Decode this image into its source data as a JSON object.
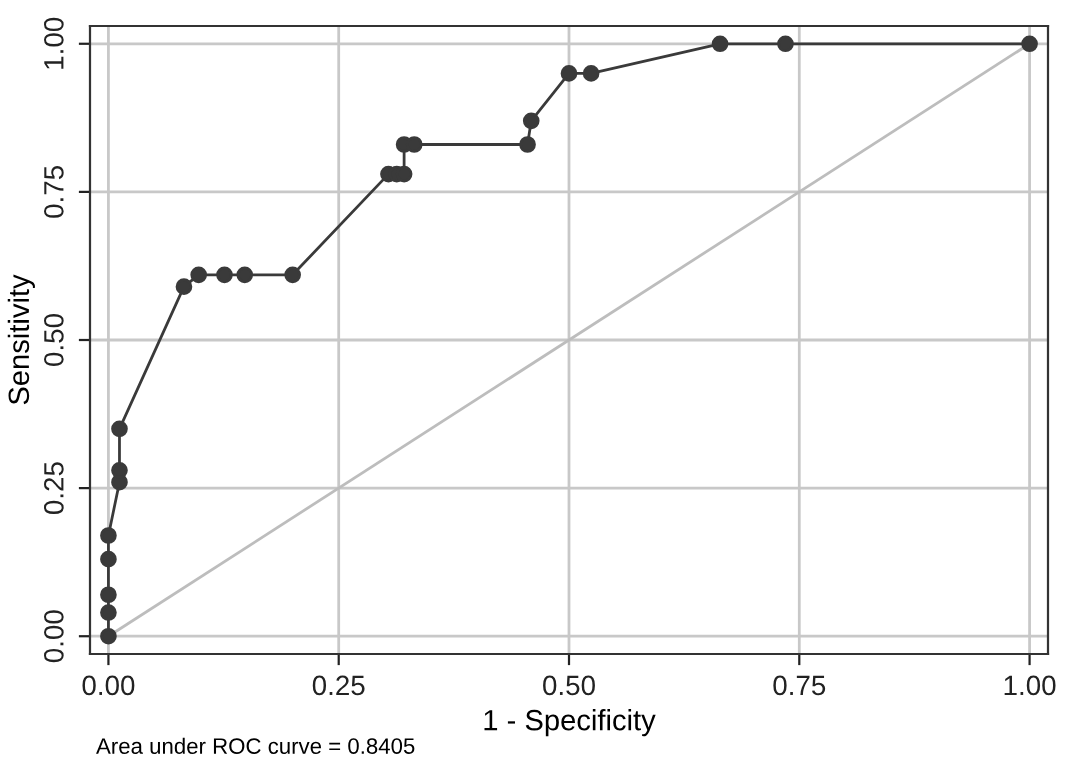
{
  "chart_data": {
    "type": "line",
    "xlabel": "1 - Specificity",
    "ylabel": "Sensitivity",
    "annotations": [
      "Area under ROC curve = 0.8405"
    ],
    "series": [
      {
        "color": "#3a3a3a",
        "marker": "circle",
        "x": [
          0,
          0,
          0,
          0,
          0,
          0.012,
          0.012,
          0.012,
          0.082,
          0.098,
          0.126,
          0.148,
          0.2,
          0.304,
          0.313,
          0.321,
          0.321,
          0.332,
          0.455,
          0.459,
          0.5,
          0.524,
          0.664,
          0.735,
          1.0
        ],
        "values": [
          0,
          0.04,
          0.07,
          0.13,
          0.17,
          0.26,
          0.28,
          0.35,
          0.59,
          0.61,
          0.61,
          0.61,
          0.61,
          0.78,
          0.78,
          0.78,
          0.83,
          0.83,
          0.83,
          0.87,
          0.95,
          0.95,
          1.0,
          1.0,
          1.0
        ]
      },
      {
        "color": "#bdbdbd",
        "marker": "none",
        "x": [
          0,
          1
        ],
        "values": [
          0,
          1
        ]
      }
    ],
    "xlim": [
      -0.02,
      1.02
    ],
    "ylim": [
      -0.03,
      1.03
    ],
    "xticks": [
      {
        "value": 0,
        "label": "0.00"
      },
      {
        "value": 0.25,
        "label": "0.25"
      },
      {
        "value": 0.5,
        "label": "0.50"
      },
      {
        "value": 0.75,
        "label": "0.75"
      },
      {
        "value": 1,
        "label": "1.00"
      }
    ],
    "yticks": [
      {
        "value": 0,
        "label": "0.00"
      },
      {
        "value": 0.25,
        "label": "0.25"
      },
      {
        "value": 0.5,
        "label": "0.50"
      },
      {
        "value": 0.75,
        "label": "0.75"
      },
      {
        "value": 1,
        "label": "1.00"
      }
    ],
    "grid": true
  }
}
